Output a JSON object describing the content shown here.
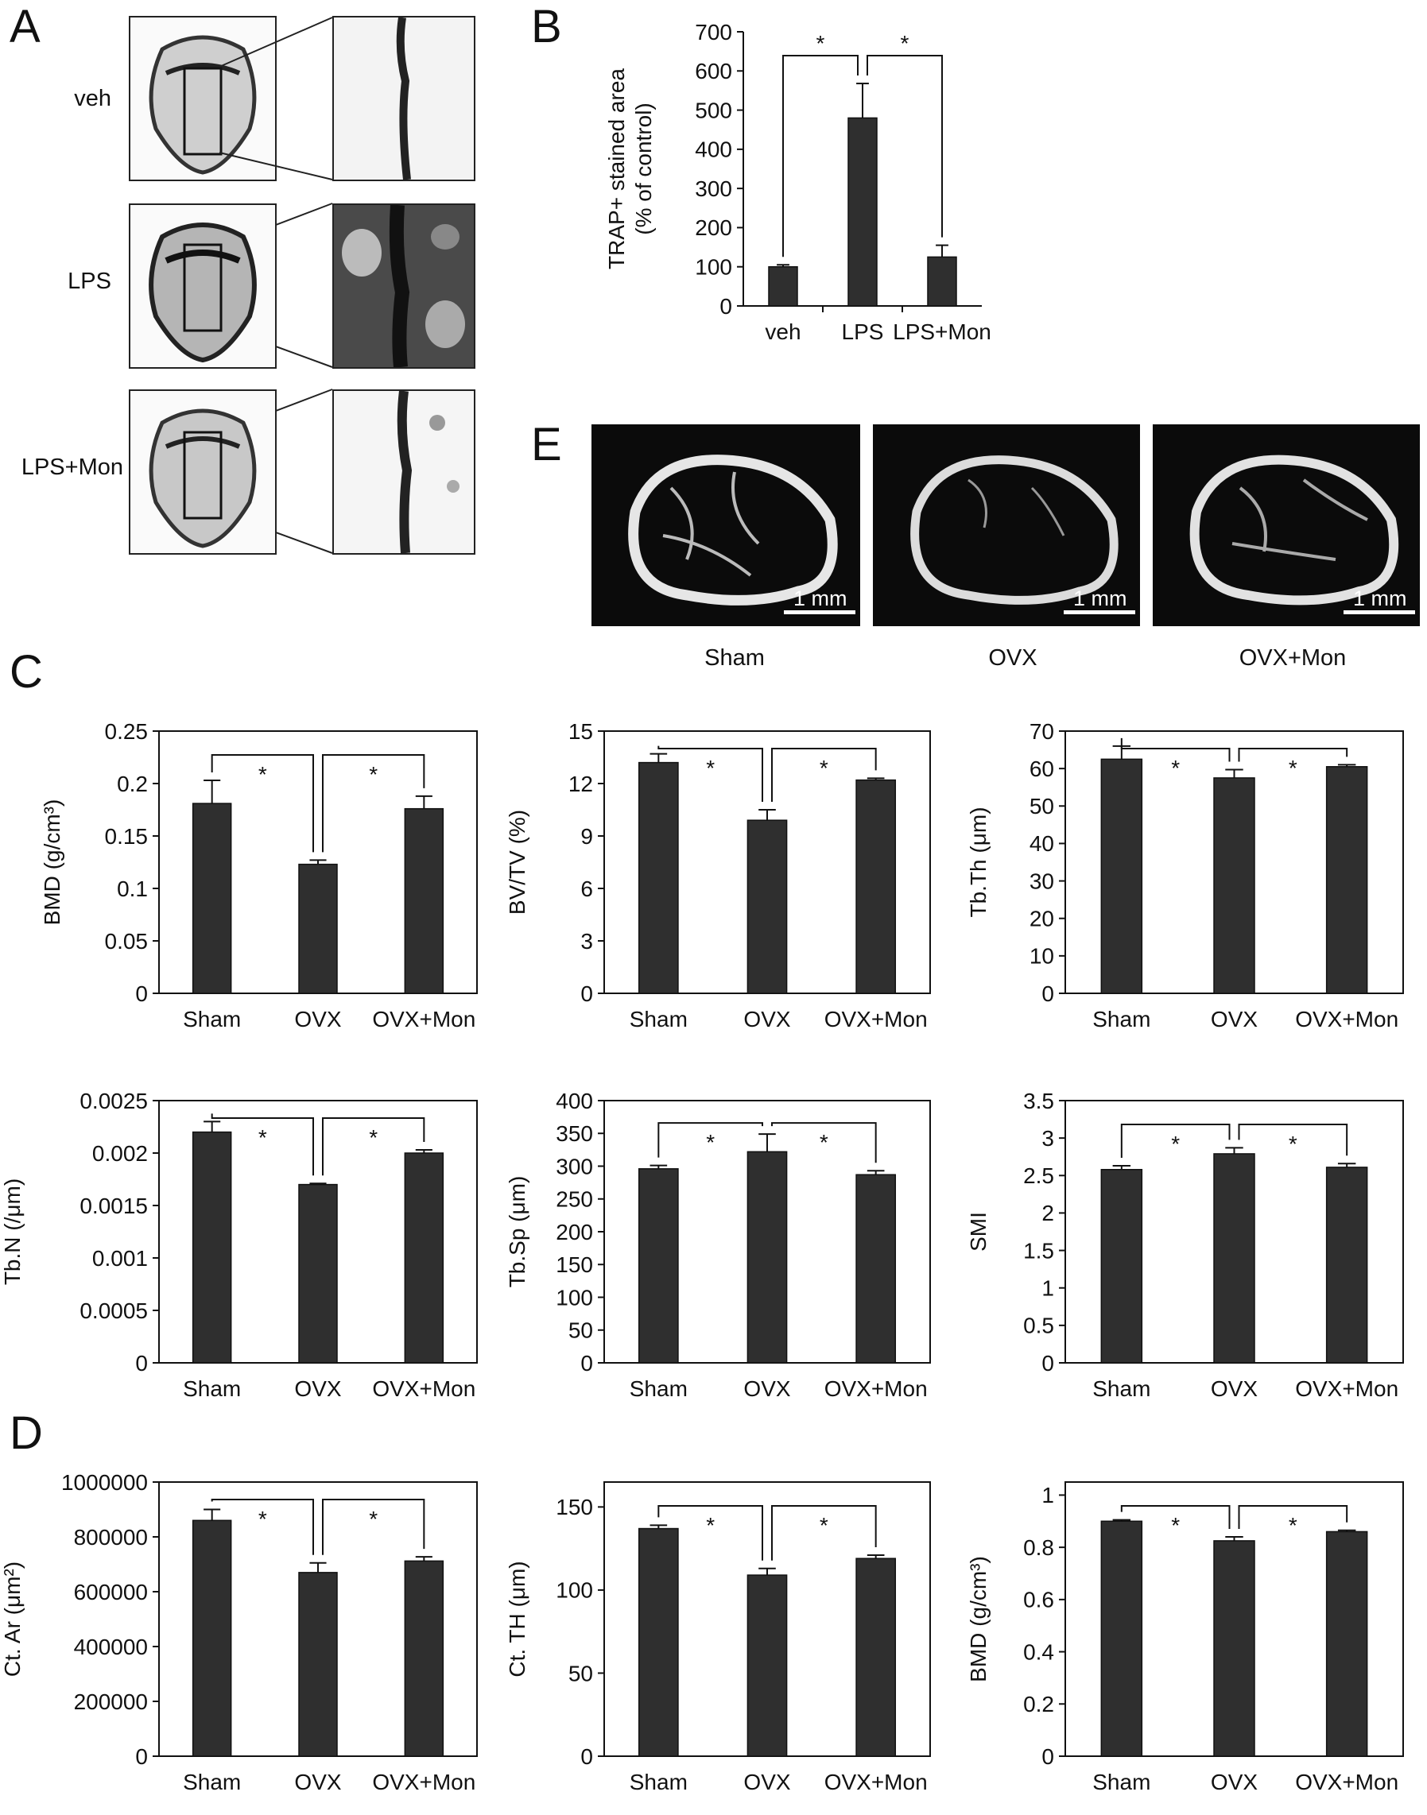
{
  "panels": {
    "A": "A",
    "B": "B",
    "C": "C",
    "D": "D",
    "E": "E"
  },
  "panel_a": {
    "rows": [
      {
        "label": "veh",
        "tone": "clean"
      },
      {
        "label": "LPS",
        "tone": "eroded"
      },
      {
        "label": "LPS+Mon",
        "tone": "mild"
      }
    ]
  },
  "panel_e": {
    "images": [
      {
        "label": "Sham",
        "scale": "1 mm"
      },
      {
        "label": "OVX",
        "scale": "1 mm"
      },
      {
        "label": "OVX+Mon",
        "scale": "1 mm"
      }
    ]
  },
  "chart_data": [
    {
      "id": "B",
      "type": "bar",
      "categories": [
        "veh",
        "LPS",
        "LPS+Mon"
      ],
      "values": [
        100,
        480,
        125
      ],
      "errors": [
        5,
        88,
        30
      ],
      "ylabel_lines": [
        "TRAP+ stained area",
        "(% of control)"
      ],
      "ylim": [
        0,
        700
      ],
      "yticks": [
        "0",
        "100",
        "200",
        "300",
        "400",
        "500",
        "600",
        "700"
      ],
      "boxed": false,
      "significance": [
        {
          "from": 0,
          "to": 1,
          "label": "*"
        },
        {
          "from": 1,
          "to": 2,
          "label": "*"
        }
      ]
    },
    {
      "id": "C1",
      "type": "bar",
      "categories": [
        "Sham",
        "OVX",
        "OVX+Mon"
      ],
      "values": [
        0.181,
        0.123,
        0.176
      ],
      "errors": [
        0.022,
        0.004,
        0.012
      ],
      "ylabel_lines": [
        "BMD (g/cm³)"
      ],
      "ylim": [
        0,
        0.25
      ],
      "yticks": [
        "0",
        "0.05",
        "0.1",
        "0.15",
        "0.2",
        "0.25"
      ],
      "boxed": true,
      "significance": [
        {
          "from": 0,
          "to": 1,
          "label": "*"
        },
        {
          "from": 1,
          "to": 2,
          "label": "*"
        }
      ]
    },
    {
      "id": "C2",
      "type": "bar",
      "categories": [
        "Sham",
        "OVX",
        "OVX+Mon"
      ],
      "values": [
        13.2,
        9.9,
        12.2
      ],
      "errors": [
        0.5,
        0.6,
        0.1
      ],
      "ylabel_lines": [
        "BV/TV (%)"
      ],
      "ylim": [
        0,
        15
      ],
      "yticks": [
        "0",
        "3",
        "6",
        "9",
        "12",
        "15"
      ],
      "boxed": true,
      "significance": [
        {
          "from": 0,
          "to": 1,
          "label": "*"
        },
        {
          "from": 1,
          "to": 2,
          "label": "*"
        }
      ]
    },
    {
      "id": "C3",
      "type": "bar",
      "categories": [
        "Sham",
        "OVX",
        "OVX+Mon"
      ],
      "values": [
        62.5,
        57.5,
        60.5
      ],
      "errors": [
        3.5,
        2.2,
        0.5
      ],
      "ylabel_lines": [
        "Tb.Th (μm)"
      ],
      "ylim": [
        0,
        70
      ],
      "yticks": [
        "0",
        "10",
        "20",
        "30",
        "40",
        "50",
        "60",
        "70"
      ],
      "boxed": true,
      "significance": [
        {
          "from": 0,
          "to": 1,
          "label": "*"
        },
        {
          "from": 1,
          "to": 2,
          "label": "*"
        }
      ]
    },
    {
      "id": "C4",
      "type": "bar",
      "categories": [
        "Sham",
        "OVX",
        "OVX+Mon"
      ],
      "values": [
        0.0022,
        0.0017,
        0.002
      ],
      "errors": [
        0.0001,
        1e-05,
        3e-05
      ],
      "ylabel_lines": [
        "Tb.N (/μm)"
      ],
      "ylim": [
        0,
        0.0025
      ],
      "yticks": [
        "0",
        "0.0005",
        "0.001",
        "0.0015",
        "0.002",
        "0.0025"
      ],
      "boxed": true,
      "significance": [
        {
          "from": 0,
          "to": 1,
          "label": "*"
        },
        {
          "from": 1,
          "to": 2,
          "label": "*"
        }
      ]
    },
    {
      "id": "C5",
      "type": "bar",
      "categories": [
        "Sham",
        "OVX",
        "OVX+Mon"
      ],
      "values": [
        296,
        322,
        287
      ],
      "errors": [
        5,
        27,
        6
      ],
      "ylabel_lines": [
        "Tb.Sp (μm)"
      ],
      "ylim": [
        0,
        400
      ],
      "yticks": [
        "0",
        "50",
        "100",
        "150",
        "200",
        "250",
        "300",
        "350",
        "400"
      ],
      "boxed": true,
      "significance": [
        {
          "from": 0,
          "to": 1,
          "label": "*"
        },
        {
          "from": 1,
          "to": 2,
          "label": "*"
        }
      ]
    },
    {
      "id": "C6",
      "type": "bar",
      "categories": [
        "Sham",
        "OVX",
        "OVX+Mon"
      ],
      "values": [
        2.58,
        2.79,
        2.61
      ],
      "errors": [
        0.05,
        0.08,
        0.05
      ],
      "ylabel_lines": [
        "SMI"
      ],
      "ylim": [
        0,
        3.5
      ],
      "yticks": [
        "0",
        "0.5",
        "1",
        "1.5",
        "2",
        "2.5",
        "3",
        "3.5"
      ],
      "boxed": true,
      "significance": [
        {
          "from": 0,
          "to": 1,
          "label": "*"
        },
        {
          "from": 1,
          "to": 2,
          "label": "*"
        }
      ]
    },
    {
      "id": "D1",
      "type": "bar",
      "categories": [
        "Sham",
        "OVX",
        "OVX+Mon"
      ],
      "values": [
        860000,
        670000,
        712000
      ],
      "errors": [
        40000,
        35000,
        15000
      ],
      "ylabel_lines": [
        "Ct. Ar (μm²)"
      ],
      "ylim": [
        0,
        1000000
      ],
      "yticks": [
        "0",
        "200000",
        "400000",
        "600000",
        "800000",
        "1000000"
      ],
      "boxed": true,
      "significance": [
        {
          "from": 0,
          "to": 1,
          "label": "*"
        },
        {
          "from": 1,
          "to": 2,
          "label": "*"
        }
      ]
    },
    {
      "id": "D2",
      "type": "bar",
      "categories": [
        "Sham",
        "OVX",
        "OVX+Mon"
      ],
      "values": [
        137,
        109,
        119
      ],
      "errors": [
        2,
        4,
        2
      ],
      "ylabel_lines": [
        "Ct. TH (μm)"
      ],
      "ylim": [
        0,
        165
      ],
      "yticks": [
        "0",
        "50",
        "100",
        "150"
      ],
      "ytick_values": [
        0,
        50,
        100,
        150
      ],
      "boxed": true,
      "significance": [
        {
          "from": 0,
          "to": 1,
          "label": "*"
        },
        {
          "from": 1,
          "to": 2,
          "label": "*"
        }
      ]
    },
    {
      "id": "D3",
      "type": "bar",
      "categories": [
        "Sham",
        "OVX",
        "OVX+Mon"
      ],
      "values": [
        0.9,
        0.825,
        0.86
      ],
      "errors": [
        0.005,
        0.015,
        0.005
      ],
      "ylabel_lines": [
        "BMD (g/cm³)"
      ],
      "ylim": [
        0,
        1.05
      ],
      "yticks": [
        "0",
        "0.2",
        "0.4",
        "0.6",
        "0.8",
        "1"
      ],
      "ytick_values": [
        0,
        0.2,
        0.4,
        0.6,
        0.8,
        1
      ],
      "boxed": true,
      "significance": [
        {
          "from": 0,
          "to": 1,
          "label": "*"
        },
        {
          "from": 1,
          "to": 2,
          "label": "*"
        }
      ]
    }
  ]
}
